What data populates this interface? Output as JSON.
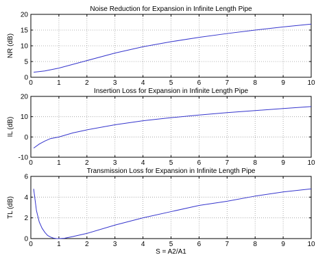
{
  "colors": {
    "line": "#3333cc",
    "grid": "#9a9a9a",
    "axes": "#000000",
    "background": "#ffffff"
  },
  "chart_data": [
    {
      "type": "line",
      "title": "Noise Reduction for Expansion in Infinite Length Pipe",
      "xlabel": "",
      "ylabel": "NR (dB)",
      "xlim": [
        0,
        10
      ],
      "ylim": [
        0,
        20
      ],
      "xticks": [
        "0",
        "1",
        "2",
        "3",
        "4",
        "5",
        "6",
        "7",
        "8",
        "9",
        "10"
      ],
      "yticks": [
        "0",
        "5",
        "10",
        "15",
        "20"
      ],
      "grid": true,
      "series": [
        {
          "x": [
            0.1,
            0.5,
            1,
            1.5,
            2,
            3,
            4,
            5,
            6,
            7,
            8,
            9,
            10
          ],
          "y": [
            1.6,
            2.0,
            2.9,
            4.1,
            5.3,
            7.7,
            9.7,
            11.3,
            12.7,
            13.9,
            15.0,
            16.0,
            16.9
          ]
        }
      ]
    },
    {
      "type": "line",
      "title": "Insertion Loss for Expansion in Infinite Length Pipe",
      "xlabel": "",
      "ylabel": "IL (dB)",
      "xlim": [
        0,
        10
      ],
      "ylim": [
        -10,
        20
      ],
      "xticks": [
        "0",
        "1",
        "2",
        "3",
        "4",
        "5",
        "6",
        "7",
        "8",
        "9",
        "10"
      ],
      "yticks": [
        "-10",
        "0",
        "10",
        "20"
      ],
      "grid": true,
      "series": [
        {
          "x": [
            0.1,
            0.3,
            0.5,
            0.7,
            1,
            1.5,
            2,
            3,
            4,
            5,
            6,
            7,
            8,
            9,
            10
          ],
          "y": [
            -5.5,
            -3.5,
            -2.0,
            -0.8,
            0.0,
            2.0,
            3.5,
            6.0,
            8.0,
            9.5,
            10.8,
            12.0,
            13.0,
            14.0,
            15.0
          ]
        }
      ]
    },
    {
      "type": "line",
      "title": "Transmission Loss for Expansion in Infinite Length Pipe",
      "xlabel": "S = A2/A1",
      "ylabel": "TL (dB)",
      "xlim": [
        0,
        10
      ],
      "ylim": [
        0,
        6
      ],
      "xticks": [
        "0",
        "1",
        "2",
        "3",
        "4",
        "5",
        "6",
        "7",
        "8",
        "9",
        "10"
      ],
      "yticks": [
        "0",
        "2",
        "4",
        "6"
      ],
      "grid": true,
      "series": [
        {
          "x": [
            0.1,
            0.2,
            0.3,
            0.4,
            0.5,
            0.6,
            0.7,
            0.8,
            0.9,
            1,
            1.2,
            1.5,
            2,
            3,
            4,
            5,
            6,
            7,
            8,
            9,
            10
          ],
          "y": [
            4.8,
            2.7,
            1.6,
            1.0,
            0.6,
            0.3,
            0.15,
            0.05,
            0.01,
            0.0,
            0.03,
            0.2,
            0.5,
            1.3,
            2.0,
            2.6,
            3.2,
            3.6,
            4.1,
            4.5,
            4.8
          ]
        }
      ]
    }
  ]
}
